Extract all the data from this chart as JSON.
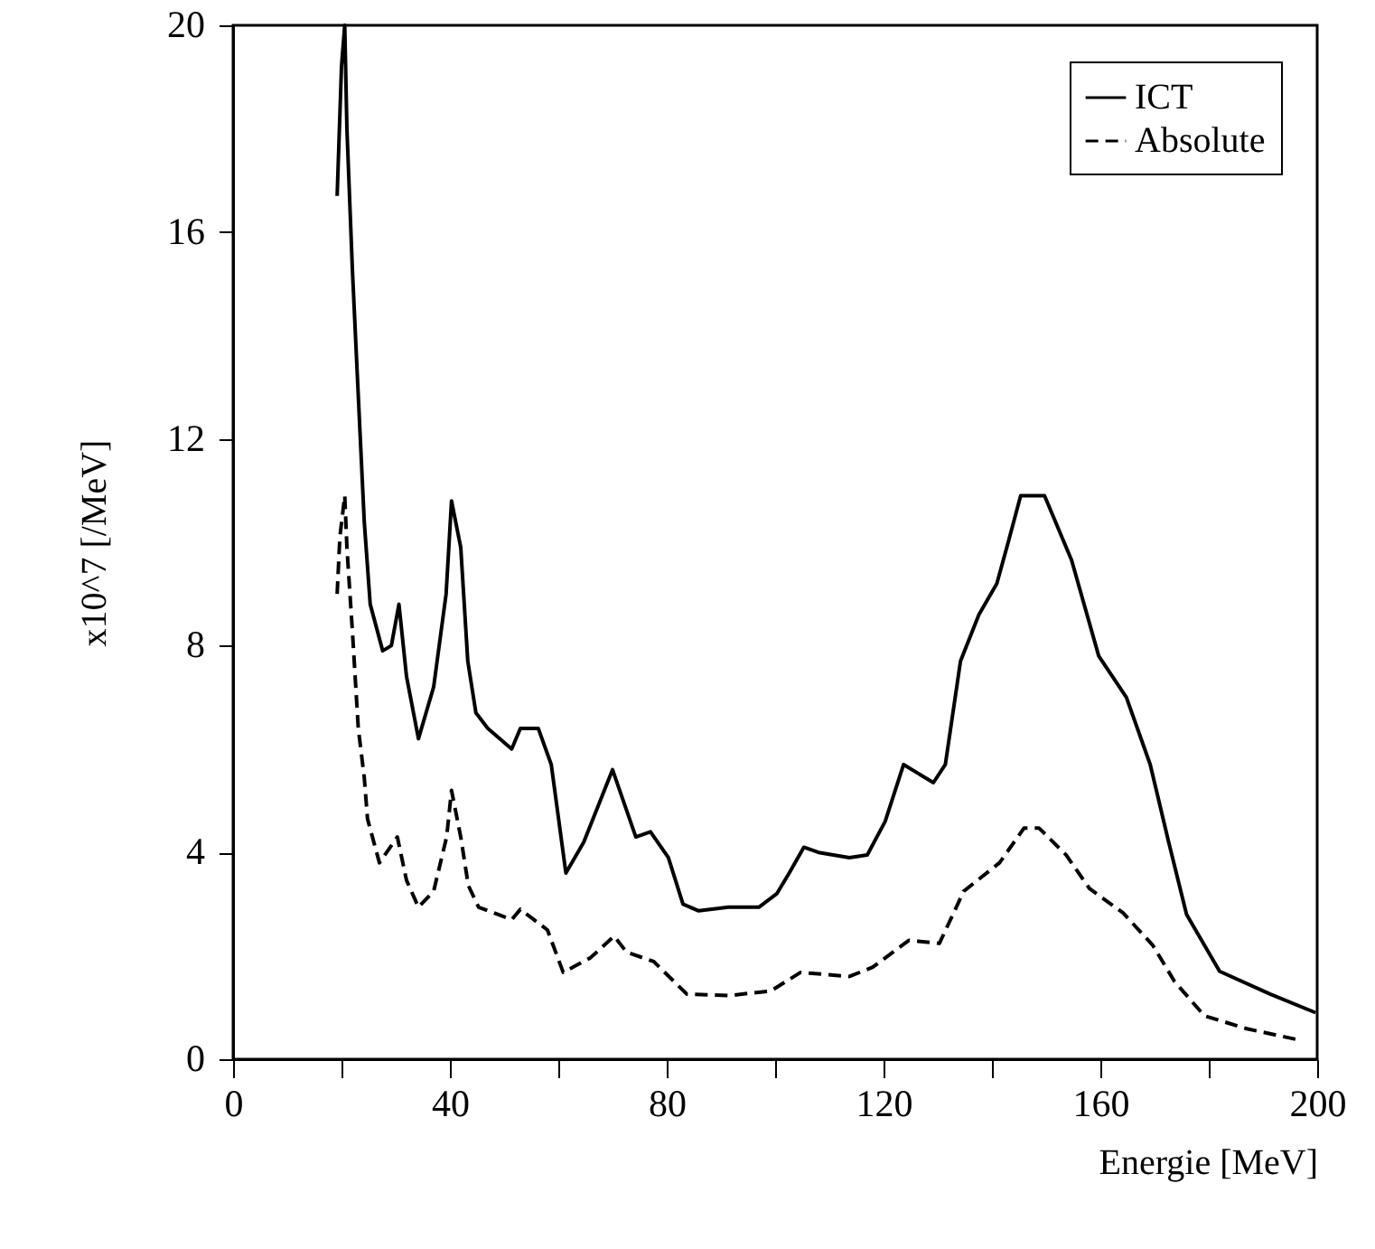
{
  "chart_data": {
    "type": "line",
    "xlabel": "Energie [MeV]",
    "ylabel": "x10^7 [/MeV]",
    "xlim": [
      0,
      200
    ],
    "ylim": [
      0,
      20
    ],
    "xticks": [
      0,
      {
        "value": 20,
        "label": null
      },
      40,
      {
        "value": 60,
        "label": null
      },
      80,
      {
        "value": 100,
        "label": null
      },
      120,
      {
        "value": 140,
        "label": null
      },
      160,
      {
        "value": 180,
        "label": null
      },
      200
    ],
    "yticks": [
      0,
      4,
      8,
      12,
      16,
      20
    ],
    "legend": "top right",
    "grid": false,
    "marker": "none",
    "series": [
      {
        "name": "ICT",
        "color": "#000000",
        "line_style": "solid",
        "x": [
          19.2,
          20,
          20.6,
          21,
          22,
          22.8,
          23.7,
          24.2,
          25.3,
          27.6,
          29.2,
          30.6,
          32,
          34.2,
          37,
          39.3,
          40.3,
          42,
          43.3,
          44.8,
          47,
          51.4,
          53,
          56.3,
          58.7,
          61.4,
          64.7,
          70,
          74.3,
          77,
          80.3,
          83,
          85.9,
          91.4,
          97,
          100.3,
          102.6,
          105.3,
          108,
          113.7,
          117,
          120.3,
          123.7,
          129.2,
          131.4,
          134.2,
          137.6,
          140.9,
          143,
          145.3,
          149.7,
          154.7,
          159.7,
          164.8,
          169.2,
          172.6,
          175.9,
          182,
          191.3,
          199.7
        ],
        "values": [
          16.7,
          19.2,
          20,
          18,
          15.3,
          13.5,
          11.5,
          10.4,
          8.8,
          7.9,
          8.0,
          8.8,
          7.4,
          6.2,
          7.2,
          9.0,
          10.8,
          9.9,
          7.7,
          6.7,
          6.4,
          6.0,
          6.4,
          6.4,
          5.7,
          3.6,
          4.2,
          5.6,
          4.3,
          4.4,
          3.9,
          3.0,
          2.87,
          2.94,
          2.94,
          3.2,
          3.6,
          4.1,
          4.0,
          3.9,
          3.95,
          4.6,
          5.7,
          5.35,
          5.7,
          7.7,
          8.6,
          9.2,
          10.0,
          10.9,
          10.9,
          9.65,
          7.8,
          7.0,
          5.7,
          4.2,
          2.8,
          1.7,
          1.26,
          0.9
        ]
      },
      {
        "name": "Absolute",
        "color": "#000000",
        "line_style": "dashed",
        "x": [
          19.2,
          19.7,
          20.6,
          21,
          22,
          23.1,
          24.2,
          24.8,
          27,
          30.3,
          32,
          34.2,
          37,
          39.4,
          40.3,
          42,
          43.4,
          45.3,
          51.4,
          53,
          58,
          60.9,
          65.9,
          70.3,
          72.6,
          77.6,
          83.7,
          91.4,
          99.2,
          104.7,
          113.7,
          118,
          124.7,
          130.3,
          134.8,
          141.4,
          145.9,
          148.7,
          153.7,
          158,
          164.2,
          169.7,
          173.7,
          179.2,
          187,
          196.3
        ],
        "values": [
          9.0,
          10.1,
          10.9,
          9.9,
          8.3,
          6.4,
          5.45,
          4.65,
          3.8,
          4.3,
          3.46,
          2.94,
          3.25,
          4.3,
          5.2,
          4.3,
          3.36,
          2.94,
          2.7,
          2.9,
          2.5,
          1.68,
          1.96,
          2.38,
          2.07,
          1.89,
          1.26,
          1.23,
          1.32,
          1.68,
          1.6,
          1.78,
          2.3,
          2.24,
          3.25,
          3.8,
          4.47,
          4.47,
          3.95,
          3.3,
          2.83,
          2.2,
          1.5,
          0.84,
          0.59,
          0.38
        ]
      }
    ]
  }
}
